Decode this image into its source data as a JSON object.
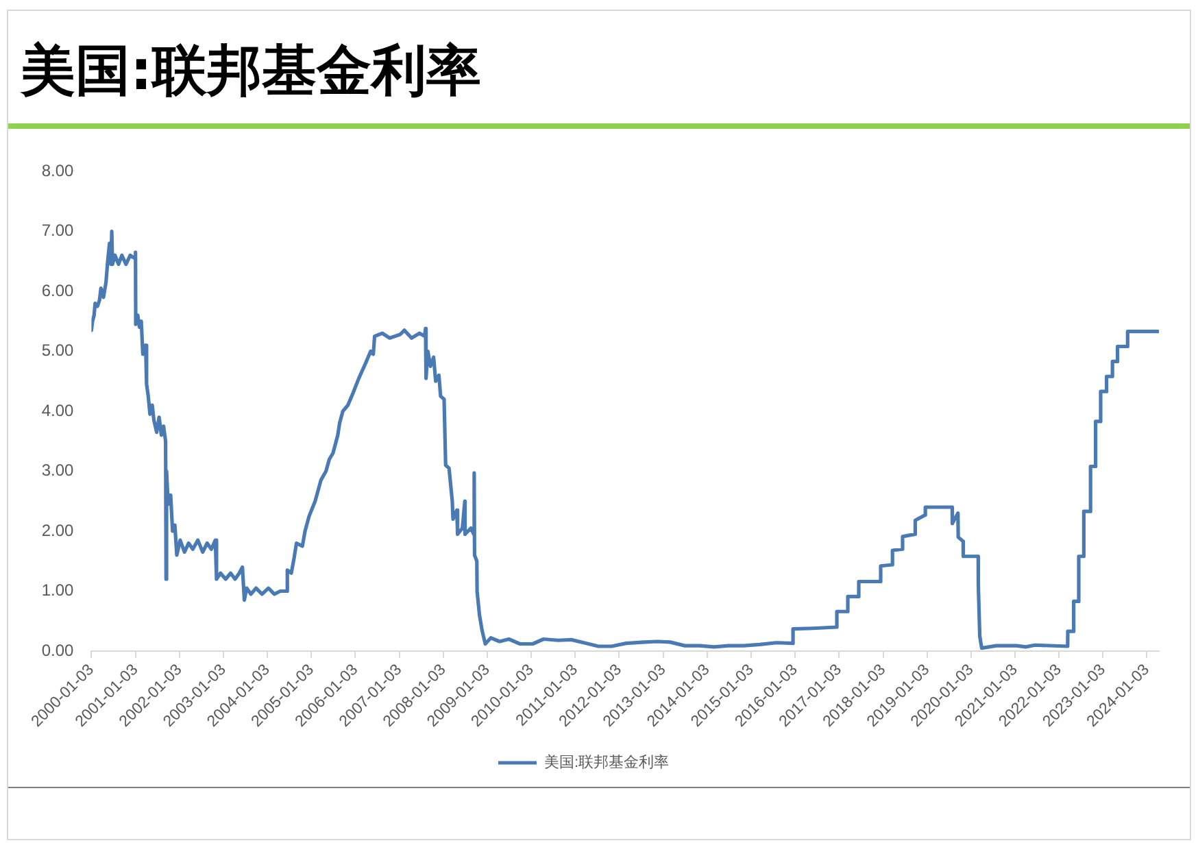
{
  "chart_data": {
    "type": "line",
    "title": "美国:联邦基金利率",
    "x": [
      "2000-01-03",
      "2000-01-12",
      "2000-01-25",
      "2000-02-03",
      "2000-02-22",
      "2000-03-10",
      "2000-03-22",
      "2000-04-12",
      "2000-05-03",
      "2000-05-17",
      "2000-06-01",
      "2000-06-13",
      "2000-06-20",
      "2000-06-26",
      "2000-07-17",
      "2000-08-15",
      "2000-09-12",
      "2000-10-16",
      "2000-11-20",
      "2000-12-27",
      "2001-01-03",
      "2001-01-05",
      "2001-01-22",
      "2001-02-05",
      "2001-02-20",
      "2001-03-05",
      "2001-03-28",
      "2001-04-05",
      "2001-04-19",
      "2001-05-03",
      "2001-05-22",
      "2001-06-05",
      "2001-06-28",
      "2001-07-18",
      "2001-08-06",
      "2001-08-24",
      "2001-09-10",
      "2001-09-14",
      "2001-09-18",
      "2001-10-01",
      "2001-10-22",
      "2001-11-07",
      "2001-11-26",
      "2001-12-12",
      "2002-01-09",
      "2002-02-14",
      "2002-03-20",
      "2002-04-24",
      "2002-06-05",
      "2002-07-15",
      "2002-08-21",
      "2002-09-25",
      "2002-10-28",
      "2002-11-07",
      "2002-12-10",
      "2003-01-22",
      "2003-03-04",
      "2003-04-10",
      "2003-05-15",
      "2003-06-10",
      "2003-06-26",
      "2003-07-15",
      "2003-08-20",
      "2003-10-01",
      "2003-11-20",
      "2004-01-12",
      "2004-03-01",
      "2004-04-20",
      "2004-06-10",
      "2004-06-17",
      "2004-07-20",
      "2004-08-12",
      "2004-09-01",
      "2004-10-20",
      "2004-11-11",
      "2004-12-15",
      "2005-02-03",
      "2005-03-23",
      "2005-05-04",
      "2005-06-01",
      "2005-07-01",
      "2005-08-10",
      "2005-08-25",
      "2005-09-21",
      "2005-11-02",
      "2005-12-14",
      "2006-02-01",
      "2006-03-29",
      "2006-05-10",
      "2006-06-01",
      "2006-06-12",
      "2006-08-15",
      "2006-10-15",
      "2007-01-10",
      "2007-02-14",
      "2007-04-15",
      "2007-06-20",
      "2007-08-01",
      "2007-08-09",
      "2007-08-13",
      "2007-08-28",
      "2007-09-19",
      "2007-10-15",
      "2007-11-01",
      "2007-11-28",
      "2007-12-12",
      "2008-01-10",
      "2008-01-23",
      "2008-02-20",
      "2008-03-18",
      "2008-03-24",
      "2008-04-25",
      "2008-05-01",
      "2008-06-10",
      "2008-06-30",
      "2008-07-02",
      "2008-08-20",
      "2008-09-12",
      "2008-09-16",
      "2008-09-19",
      "2008-10-08",
      "2008-10-10",
      "2008-10-30",
      "2008-11-20",
      "2008-12-17",
      "2009-02-01",
      "2009-04-15",
      "2009-07-01",
      "2009-10-01",
      "2010-01-15",
      "2010-04-15",
      "2010-08-15",
      "2010-12-01",
      "2011-03-15",
      "2011-07-15",
      "2011-11-01",
      "2012-03-01",
      "2012-08-01",
      "2012-11-15",
      "2013-03-01",
      "2013-07-01",
      "2013-11-01",
      "2014-03-01",
      "2014-07-01",
      "2014-11-01",
      "2015-03-15",
      "2015-08-01",
      "2015-12-16",
      "2015-12-17",
      "2016-06-01",
      "2016-12-14",
      "2016-12-15",
      "2017-03-15",
      "2017-03-16",
      "2017-06-14",
      "2017-06-15",
      "2017-12-13",
      "2017-12-14",
      "2018-03-21",
      "2018-03-22",
      "2018-06-13",
      "2018-06-14",
      "2018-09-26",
      "2018-09-27",
      "2018-12-19",
      "2018-12-20",
      "2019-07-31",
      "2019-08-01",
      "2019-09-17",
      "2019-09-19",
      "2019-10-30",
      "2019-10-31",
      "2020-03-03",
      "2020-03-04",
      "2020-03-16",
      "2020-04-01",
      "2020-08-01",
      "2021-01-15",
      "2021-04-01",
      "2021-06-17",
      "2022-03-16",
      "2022-03-17",
      "2022-05-04",
      "2022-05-05",
      "2022-06-15",
      "2022-06-16",
      "2022-07-27",
      "2022-07-28",
      "2022-09-21",
      "2022-09-22",
      "2022-11-02",
      "2022-11-03",
      "2022-12-14",
      "2022-12-15",
      "2023-02-01",
      "2023-02-02",
      "2023-03-22",
      "2023-03-23",
      "2023-05-03",
      "2023-05-04",
      "2023-07-26",
      "2023-07-27",
      "2024-04-10"
    ],
    "series": [
      {
        "name": "美国:联邦基金利率",
        "color": "#4a7ab4",
        "values": [
          5.35,
          5.5,
          5.6,
          5.8,
          5.75,
          5.85,
          6.05,
          5.9,
          6.15,
          6.5,
          6.8,
          6.45,
          7.0,
          6.45,
          6.6,
          6.45,
          6.6,
          6.45,
          6.6,
          6.55,
          6.65,
          5.45,
          5.6,
          5.4,
          5.5,
          4.95,
          5.1,
          4.45,
          4.25,
          3.95,
          4.1,
          3.85,
          3.65,
          3.9,
          3.6,
          3.75,
          3.5,
          1.2,
          3.0,
          2.45,
          2.6,
          2.0,
          2.1,
          1.6,
          1.85,
          1.65,
          1.8,
          1.7,
          1.85,
          1.65,
          1.8,
          1.7,
          1.85,
          1.2,
          1.3,
          1.2,
          1.3,
          1.2,
          1.3,
          1.4,
          0.85,
          1.05,
          0.95,
          1.05,
          0.95,
          1.05,
          0.95,
          1.0,
          1.0,
          1.35,
          1.3,
          1.55,
          1.8,
          1.75,
          2.0,
          2.25,
          2.5,
          2.85,
          3.0,
          3.2,
          3.3,
          3.6,
          3.8,
          4.0,
          4.1,
          4.3,
          4.55,
          4.8,
          5.0,
          4.95,
          5.25,
          5.3,
          5.22,
          5.28,
          5.35,
          5.22,
          5.3,
          5.25,
          5.38,
          4.55,
          5.0,
          4.75,
          4.9,
          4.5,
          4.6,
          4.25,
          4.2,
          3.1,
          3.05,
          2.5,
          2.2,
          2.35,
          1.95,
          2.05,
          2.5,
          1.95,
          2.05,
          1.95,
          2.97,
          1.6,
          1.5,
          1.0,
          0.6,
          0.35,
          0.12,
          0.22,
          0.16,
          0.2,
          0.12,
          0.12,
          0.2,
          0.18,
          0.19,
          0.14,
          0.08,
          0.08,
          0.13,
          0.15,
          0.16,
          0.15,
          0.09,
          0.09,
          0.07,
          0.09,
          0.09,
          0.11,
          0.14,
          0.13,
          0.37,
          0.38,
          0.4,
          0.66,
          0.66,
          0.91,
          0.91,
          1.16,
          1.16,
          1.42,
          1.44,
          1.68,
          1.7,
          1.91,
          1.95,
          2.18,
          2.27,
          2.4,
          2.4,
          2.13,
          2.3,
          1.9,
          1.83,
          1.58,
          1.58,
          1.1,
          0.25,
          0.05,
          0.09,
          0.09,
          0.07,
          0.1,
          0.08,
          0.33,
          0.33,
          0.83,
          0.83,
          1.58,
          1.58,
          2.33,
          2.33,
          3.08,
          3.08,
          3.83,
          3.83,
          4.33,
          4.33,
          4.58,
          4.58,
          4.83,
          4.83,
          5.08,
          5.08,
          5.33,
          5.33
        ]
      }
    ],
    "xlim": [
      "2000-01-03",
      "2024-04-12"
    ],
    "xticks": [
      "2000-01-03",
      "2001-01-03",
      "2002-01-03",
      "2003-01-03",
      "2004-01-03",
      "2005-01-03",
      "2006-01-03",
      "2007-01-03",
      "2008-01-03",
      "2009-01-03",
      "2010-01-03",
      "2011-01-03",
      "2012-01-03",
      "2013-01-03",
      "2014-01-03",
      "2015-01-03",
      "2016-01-03",
      "2017-01-03",
      "2018-01-03",
      "2019-01-03",
      "2020-01-03",
      "2021-01-03",
      "2022-01-03",
      "2023-01-03",
      "2024-01-03"
    ],
    "ylim": [
      0,
      8
    ],
    "yticks": [
      {
        "value": 0,
        "label": "0.00"
      },
      {
        "value": 1,
        "label": "1.00"
      },
      {
        "value": 2,
        "label": "2.00"
      },
      {
        "value": 3,
        "label": "3.00"
      },
      {
        "value": 4,
        "label": "4.00"
      },
      {
        "value": 5,
        "label": "5.00"
      },
      {
        "value": 6,
        "label": "6.00"
      },
      {
        "value": 7,
        "label": "7.00"
      },
      {
        "value": 8,
        "label": "8.00"
      }
    ],
    "grid": false,
    "legend": "bottom"
  }
}
